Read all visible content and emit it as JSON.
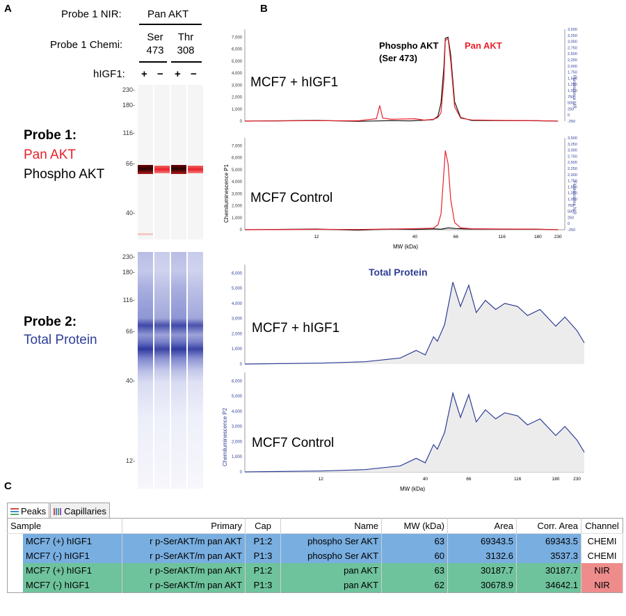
{
  "panels": {
    "a": "A",
    "b": "B",
    "c": "C"
  },
  "gel": {
    "probe1_nir_label": "Probe 1 NIR:",
    "probe1_nir_value": "Pan AKT",
    "probe1_chemi_label": "Probe 1 Chemi:",
    "chemi_groups": [
      {
        "line1": "Ser",
        "line2": "473"
      },
      {
        "line1": "Thr",
        "line2": "308"
      }
    ],
    "higf1_label": "hIGF1:",
    "lane_signs": [
      "+",
      "−",
      "+",
      "−"
    ],
    "mw_markers_probe1": [
      "230",
      "180",
      "116",
      "66",
      "40"
    ],
    "mw_markers_probe2": [
      "230",
      "180",
      "116",
      "66",
      "40",
      "12"
    ],
    "probe1": {
      "title": "Probe 1:",
      "line_red": "Pan AKT",
      "line_black": "Phospho AKT"
    },
    "probe2": {
      "title": "Probe 2:",
      "line_blue": "Total Protein"
    }
  },
  "colors": {
    "red": "#e8212b",
    "black": "#111111",
    "blue": "#2e3d94",
    "sky": "#79aee0",
    "green": "#6ec29c",
    "pink": "#ee8c8c"
  },
  "chart_data": [
    {
      "type": "line",
      "label": "MCF7 + hIGF1",
      "legend": {
        "black": "Phospho AKT",
        "black_sub": "(Ser 473)",
        "red": "Pan AKT"
      },
      "ylabel": "",
      "y_right_label": "Fluorescence NIR",
      "yticks_left": [
        "0",
        "1,000",
        "2,000",
        "3,000",
        "4,000",
        "5,000",
        "6,000",
        "7,000"
      ],
      "yticks_right": [
        "-250",
        "0",
        "250",
        "500",
        "750",
        "1,000",
        "1,250",
        "1,500",
        "1,750",
        "2,000",
        "2,250",
        "2,500",
        "2,750",
        "3,000",
        "3,250",
        "3,500"
      ],
      "ylim": [
        0,
        7200
      ],
      "series": [
        {
          "name": "Phospho AKT",
          "color": "#111111",
          "x": [
            5,
            12,
            20,
            30,
            38,
            45,
            50,
            53,
            55,
            57,
            58,
            60,
            62,
            65,
            70,
            80,
            116,
            180,
            230
          ],
          "values": [
            0,
            60,
            -20,
            40,
            20,
            80,
            120,
            400,
            1500,
            4500,
            6900,
            7000,
            5500,
            1600,
            300,
            60,
            40,
            30,
            0
          ]
        },
        {
          "name": "Pan AKT",
          "color": "#e8212b",
          "x": [
            5,
            12,
            20,
            25,
            26,
            27,
            30,
            40,
            45,
            50,
            53,
            55,
            57,
            58,
            60,
            62,
            65,
            70,
            80,
            116,
            180,
            230
          ],
          "values": [
            0,
            40,
            30,
            200,
            1300,
            250,
            150,
            200,
            80,
            150,
            300,
            700,
            3500,
            6700,
            6900,
            5000,
            1200,
            250,
            100,
            60,
            40,
            0
          ]
        }
      ]
    },
    {
      "type": "line",
      "label": "MCF7 Control",
      "ylabel": "Chemiluminescence P1",
      "y_right_label": "Fluorescence NIR",
      "xlabel": "MW (kDa)",
      "xticks": [
        "12",
        "40",
        "66",
        "116",
        "180",
        "230"
      ],
      "yticks_left": [
        "0",
        "1,000",
        "2,000",
        "3,000",
        "4,000",
        "5,000",
        "6,000",
        "7,000"
      ],
      "yticks_right": [
        "-250",
        "0",
        "250",
        "500",
        "750",
        "1,000",
        "1,250",
        "1,500",
        "1,750",
        "2,000",
        "2,250",
        "2,500",
        "2,750",
        "3,000",
        "3,250",
        "3,500"
      ],
      "ylim": [
        0,
        7200
      ],
      "series": [
        {
          "name": "Phospho AKT",
          "color": "#111111",
          "x": [
            5,
            12,
            20,
            30,
            40,
            50,
            55,
            60,
            66,
            80,
            116,
            180,
            230
          ],
          "values": [
            0,
            50,
            -40,
            60,
            20,
            80,
            40,
            150,
            100,
            60,
            50,
            40,
            0
          ]
        },
        {
          "name": "Pan AKT",
          "color": "#e8212b",
          "x": [
            5,
            12,
            20,
            30,
            40,
            50,
            53,
            55,
            57,
            58,
            60,
            62,
            65,
            70,
            80,
            116,
            180,
            230
          ],
          "values": [
            0,
            30,
            20,
            60,
            80,
            120,
            400,
            1300,
            4800,
            6600,
            5500,
            2500,
            600,
            150,
            80,
            60,
            40,
            0
          ]
        }
      ]
    },
    {
      "type": "area",
      "title": "Total Protein",
      "label": "MCF7 + hIGF1",
      "ylabel": "",
      "yticks_left": [
        "0",
        "1,000",
        "2,000",
        "3,000",
        "4,000",
        "5,000",
        "6,000"
      ],
      "ylim": [
        0,
        6200
      ],
      "series": [
        {
          "name": "Total Protein",
          "color": "#2e3d94",
          "x": [
            5,
            12,
            20,
            30,
            36,
            40,
            44,
            46,
            50,
            55,
            60,
            66,
            72,
            80,
            90,
            100,
            116,
            130,
            150,
            180,
            200,
            230,
            250
          ],
          "values": [
            0,
            60,
            150,
            400,
            900,
            600,
            1800,
            1500,
            2600,
            5400,
            3800,
            5200,
            3400,
            4200,
            3600,
            4000,
            3800,
            3200,
            3600,
            2500,
            3100,
            2200,
            1400
          ]
        }
      ]
    },
    {
      "type": "area",
      "label": "MCF7 Control",
      "ylabel": "Chemiluminescence P2",
      "xlabel": "MW (kDa)",
      "xticks": [
        "12",
        "40",
        "66",
        "116",
        "180",
        "230"
      ],
      "yticks_left": [
        "0",
        "1,000",
        "2,000",
        "3,000",
        "4,000",
        "5,000",
        "6,000"
      ],
      "ylim": [
        0,
        6200
      ],
      "series": [
        {
          "name": "Total Protein",
          "color": "#2e3d94",
          "x": [
            5,
            12,
            20,
            30,
            36,
            40,
            44,
            46,
            50,
            55,
            60,
            66,
            72,
            80,
            90,
            100,
            116,
            130,
            150,
            180,
            200,
            230,
            250
          ],
          "values": [
            0,
            60,
            150,
            400,
            900,
            600,
            1800,
            1500,
            2600,
            5200,
            3600,
            5100,
            3300,
            4100,
            3500,
            3900,
            3700,
            3100,
            3500,
            2400,
            3000,
            2100,
            1300
          ]
        }
      ]
    }
  ],
  "table": {
    "tabs": [
      {
        "label": "Peaks",
        "icon": "grid-icon"
      },
      {
        "label": "Capillaries",
        "icon": "capillaries-icon"
      }
    ],
    "columns": [
      "Sample",
      "Primary",
      "Cap",
      "Name",
      "MW (kDa)",
      "Area",
      "Corr. Area",
      "Channel"
    ],
    "rows": [
      {
        "sample": "MCF7 (+) hIGF1",
        "primary": "r p-SerAKT/m pan AKT",
        "cap": "P1:2",
        "name": "phospho Ser AKT",
        "mw": "63",
        "area": "69343.5",
        "corr": "69343.5",
        "channel": "CHEMI"
      },
      {
        "sample": "MCF7 (-) hIGF1",
        "primary": "r p-SerAKT/m pan AKT",
        "cap": "P1:3",
        "name": "phospho Ser AKT",
        "mw": "60",
        "area": "3132.6",
        "corr": "3537.3",
        "channel": "CHEMI"
      },
      {
        "sample": "MCF7 (+) hIGF1",
        "primary": "r p-SerAKT/m pan AKT",
        "cap": "P1:2",
        "name": "pan AKT",
        "mw": "63",
        "area": "30187.7",
        "corr": "30187.7",
        "channel": "NIR"
      },
      {
        "sample": "MCF7 (-) hIGF1",
        "primary": "r p-SerAKT/m pan AKT",
        "cap": "P1:3",
        "name": "pan AKT",
        "mw": "62",
        "area": "30678.9",
        "corr": "34642.1",
        "channel": "NIR"
      }
    ]
  }
}
